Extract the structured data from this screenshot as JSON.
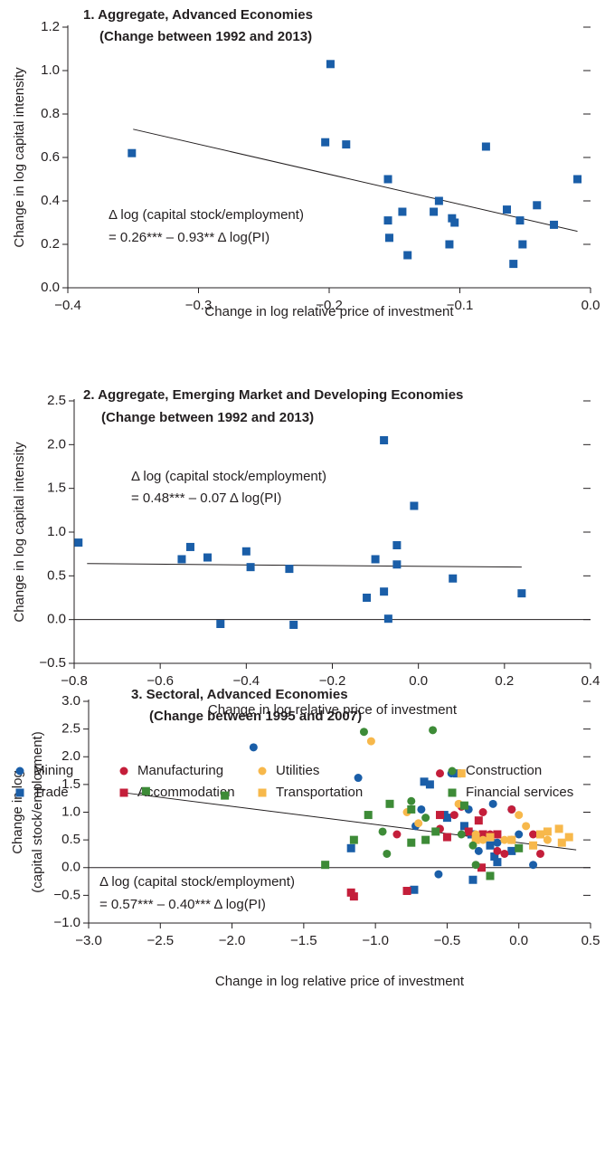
{
  "chart_data": [
    {
      "type": "scatter",
      "title": [
        "1. Aggregate, Advanced Economies",
        "(Change between 1992 and 2013)"
      ],
      "x_label": "Change in log relative price of investment",
      "y_label": [
        "Change in log capital intensity"
      ],
      "annotation": [
        "Δ log (capital stock/employment)",
        "= 0.26*** – 0.93** Δ log(PI)"
      ],
      "xlim": [
        -0.4,
        0.0
      ],
      "ylim": [
        0,
        1.2
      ],
      "xticks": [
        {
          "value": -0.4,
          "label": "−0.4"
        },
        {
          "value": -0.3,
          "label": "−0.3"
        },
        {
          "value": -0.2,
          "label": "−0.2"
        },
        {
          "value": -0.1,
          "label": "−0.1"
        },
        {
          "value": 0,
          "label": "0.0"
        }
      ],
      "yticks": [
        {
          "value": 0,
          "label": "0.0"
        },
        0.2,
        0.4,
        0.6,
        0.8,
        {
          "value": 1,
          "label": "1.0"
        },
        1.2
      ],
      "zero_line": false,
      "series": [
        {
          "color": "#1a5ea8",
          "marker": "square",
          "x": [
            -0.351,
            -0.199,
            -0.203,
            -0.187,
            -0.155,
            -0.155,
            -0.154,
            -0.144,
            -0.14,
            -0.12,
            -0.116,
            -0.106,
            -0.104,
            -0.108,
            -0.08,
            -0.064,
            -0.059,
            -0.054,
            -0.052,
            -0.041,
            -0.028,
            -0.01
          ],
          "y": [
            0.62,
            1.03,
            0.67,
            0.66,
            0.5,
            0.31,
            0.23,
            0.35,
            0.15,
            0.35,
            0.4,
            0.32,
            0.3,
            0.2,
            0.65,
            0.36,
            0.11,
            0.31,
            0.2,
            0.38,
            0.29,
            0.5
          ]
        }
      ],
      "trend": {
        "x": [
          -0.35,
          -0.01
        ],
        "y": [
          0.73,
          0.26
        ]
      }
    },
    {
      "type": "scatter",
      "title": [
        "2. Aggregate, Emerging Market and Developing Economies",
        "(Change between 1992 and 2013)"
      ],
      "x_label": "Change in log relative price of investment",
      "y_label": [
        "Change in log capital intensity"
      ],
      "annotation": [
        "Δ log (capital stock/employment)",
        "= 0.48*** – 0.07 Δ log(PI)"
      ],
      "xlim": [
        -0.8,
        0.4
      ],
      "ylim": [
        -0.5,
        2.5
      ],
      "xticks": [
        {
          "value": -0.8,
          "label": "−0.8"
        },
        {
          "value": -0.6,
          "label": "−0.6"
        },
        {
          "value": -0.4,
          "label": "−0.4"
        },
        {
          "value": -0.2,
          "label": "−0.2"
        },
        {
          "value": 0,
          "label": "0.0"
        },
        0.2,
        0.4
      ],
      "yticks": [
        {
          "value": -0.5,
          "label": "−0.5"
        },
        {
          "value": 0,
          "label": "0.0"
        },
        0.5,
        {
          "value": 1,
          "label": "1.0"
        },
        1.5,
        {
          "value": 2,
          "label": "2.0"
        },
        2.5
      ],
      "zero_line": true,
      "series": [
        {
          "color": "#1a5ea8",
          "marker": "square",
          "x": [
            -0.79,
            -0.55,
            -0.53,
            -0.49,
            -0.4,
            -0.39,
            -0.46,
            -0.3,
            -0.29,
            -0.12,
            -0.1,
            -0.08,
            -0.08,
            -0.01,
            -0.05,
            -0.05,
            -0.07,
            0.08,
            0.24
          ],
          "y": [
            0.88,
            0.69,
            0.83,
            0.71,
            0.78,
            0.6,
            -0.05,
            0.58,
            -0.06,
            0.25,
            0.69,
            0.32,
            2.05,
            1.3,
            0.85,
            0.63,
            0.01,
            0.47,
            0.3
          ]
        }
      ],
      "trend": {
        "x": [
          -0.77,
          0.24
        ],
        "y": [
          0.64,
          0.6
        ]
      }
    },
    {
      "type": "scatter",
      "title": [
        "3. Sectoral, Advanced Economies",
        "(Change between 1995 and 2007)"
      ],
      "x_label": "Change in log relative price of investment",
      "y_label": [
        "Change in log",
        "(capital stock/employment)"
      ],
      "annotation": [
        "Δ log (capital stock/employment)",
        "= 0.57*** – 0.40*** Δ log(PI)"
      ],
      "xlim": [
        -3.0,
        0.5
      ],
      "ylim": [
        -1.0,
        3.0
      ],
      "xticks": [
        {
          "value": -3,
          "label": "−3.0"
        },
        {
          "value": -2.5,
          "label": "−2.5"
        },
        {
          "value": -2,
          "label": "−2.0"
        },
        {
          "value": -1.5,
          "label": "−1.5"
        },
        {
          "value": -1,
          "label": "−1.0"
        },
        {
          "value": -0.5,
          "label": "−0.5"
        },
        {
          "value": 0,
          "label": "0.0"
        },
        0.5
      ],
      "yticks": [
        {
          "value": -1,
          "label": "−1.0"
        },
        {
          "value": -0.5,
          "label": "−0.5"
        },
        {
          "value": 0,
          "label": "0.0"
        },
        0.5,
        {
          "value": 1,
          "label": "1.0"
        },
        1.5,
        {
          "value": 2,
          "label": "2.0"
        },
        2.5,
        {
          "value": 3,
          "label": "3.0"
        }
      ],
      "zero_line": true,
      "series": [
        {
          "name": "Mining",
          "color": "#1a5ea8",
          "marker": "circle",
          "x": [
            -1.85,
            -1.12,
            -0.56,
            -0.68,
            -0.47,
            -0.35,
            -0.18,
            -0.05,
            0.0,
            0.1,
            -0.72,
            -0.28,
            -0.15
          ],
          "y": [
            2.17,
            1.62,
            -0.12,
            1.05,
            1.7,
            1.05,
            1.15,
            1.05,
            0.6,
            0.05,
            0.75,
            0.3,
            0.45
          ]
        },
        {
          "name": "Trade",
          "color": "#1a5ea8",
          "marker": "square",
          "x": [
            -0.62,
            -0.66,
            -0.43,
            -1.17,
            -0.73,
            -0.32,
            -0.52,
            -0.38,
            -0.33,
            -0.17,
            -0.15,
            -0.2,
            -0.05,
            -0.5
          ],
          "y": [
            1.5,
            1.55,
            1.7,
            0.35,
            -0.4,
            -0.22,
            0.95,
            0.75,
            0.6,
            0.2,
            0.1,
            0.4,
            0.3,
            0.9
          ]
        },
        {
          "name": "Manufacturing",
          "color": "#c41e3a",
          "marker": "circle",
          "x": [
            -0.55,
            -0.4,
            -0.25,
            -0.2,
            -0.15,
            -0.1,
            -0.05,
            0.15,
            0.1,
            -0.85,
            -0.55,
            -0.05,
            -0.3,
            -0.45
          ],
          "y": [
            1.7,
            1.1,
            1.0,
            0.6,
            0.3,
            0.25,
            0.5,
            0.25,
            0.6,
            0.6,
            0.7,
            1.05,
            0.55,
            0.95
          ]
        },
        {
          "name": "Accommodation",
          "color": "#c41e3a",
          "marker": "square",
          "x": [
            -1.17,
            -1.15,
            -0.78,
            -0.26,
            -0.5,
            -0.35,
            -0.25,
            -0.15,
            -0.28,
            -0.55
          ],
          "y": [
            -0.45,
            -0.52,
            -0.42,
            0.0,
            0.55,
            0.65,
            0.6,
            0.6,
            0.85,
            0.95
          ]
        },
        {
          "name": "Utilities",
          "color": "#f7b84b",
          "marker": "circle",
          "x": [
            -1.03,
            -0.78,
            -0.42,
            -0.3,
            0.05,
            0.2,
            -0.1,
            -0.7,
            0.0,
            -0.25
          ],
          "y": [
            2.28,
            1.0,
            1.15,
            0.6,
            0.75,
            0.5,
            0.5,
            0.8,
            0.95,
            0.5
          ]
        },
        {
          "name": "Transportation",
          "color": "#f7b84b",
          "marker": "square",
          "x": [
            -0.4,
            0.1,
            0.2,
            0.28,
            0.35,
            0.3,
            -0.05,
            0.15,
            -0.3,
            -0.2
          ],
          "y": [
            1.7,
            0.4,
            0.65,
            0.7,
            0.55,
            0.45,
            0.5,
            0.6,
            0.5,
            0.55
          ]
        },
        {
          "name": "Construction",
          "color": "#3d8b37",
          "marker": "circle",
          "x": [
            -1.08,
            -0.6,
            -0.75,
            -0.95,
            -0.92,
            -0.65,
            -0.32,
            -0.3,
            -0.4
          ],
          "y": [
            2.45,
            2.48,
            1.2,
            0.65,
            0.25,
            0.9,
            0.4,
            0.05,
            0.6
          ]
        },
        {
          "name": "Financial services",
          "color": "#3d8b37",
          "marker": "square",
          "x": [
            -2.6,
            -2.05,
            -1.35,
            -1.15,
            -1.05,
            -0.9,
            -0.75,
            -0.65,
            -0.58,
            -0.38,
            -0.2,
            0.0,
            -0.75
          ],
          "y": [
            1.38,
            1.3,
            0.05,
            0.5,
            0.95,
            1.15,
            1.05,
            0.5,
            0.65,
            1.12,
            -0.15,
            0.35,
            0.45
          ]
        }
      ],
      "trend": {
        "x": [
          -2.75,
          0.4
        ],
        "y": [
          1.35,
          0.32
        ]
      }
    }
  ]
}
